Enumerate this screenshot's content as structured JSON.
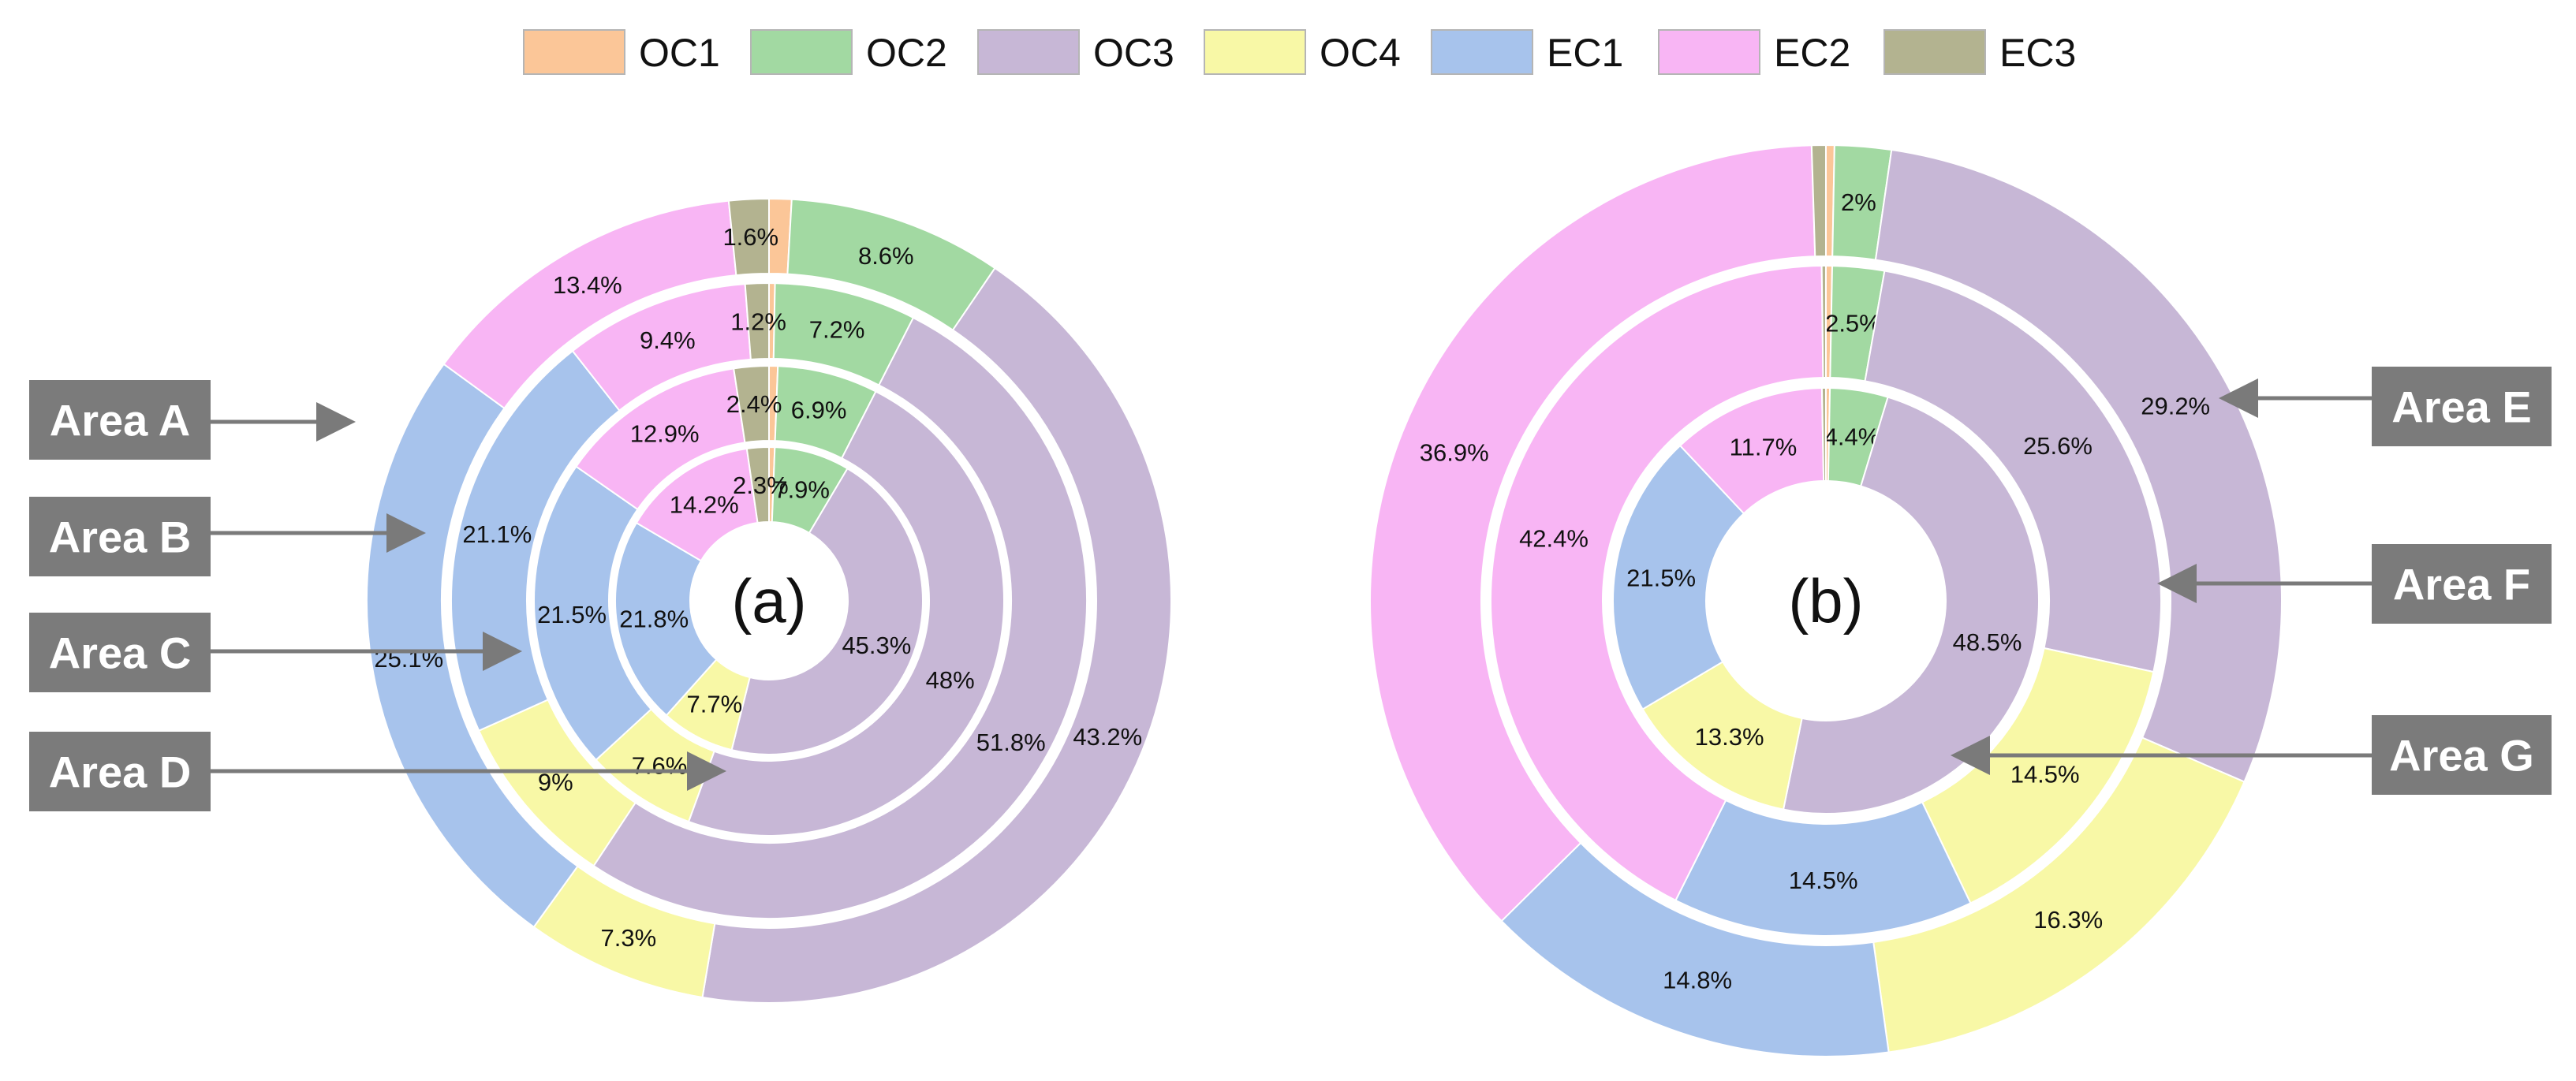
{
  "chart_data": {
    "type": "donut",
    "legend": {
      "position": "top",
      "entries": [
        {
          "name": "OC1",
          "color": "#fbc698"
        },
        {
          "name": "OC2",
          "color": "#a2d9a2"
        },
        {
          "name": "OC3",
          "color": "#c7b7d6"
        },
        {
          "name": "OC4",
          "color": "#f8f8a6"
        },
        {
          "name": "EC1",
          "color": "#a7c3ec"
        },
        {
          "name": "EC2",
          "color": "#f8b5f4"
        },
        {
          "name": "EC3",
          "color": "#b3b390"
        }
      ]
    },
    "panels": [
      {
        "label": "(a)",
        "rings": [
          {
            "area": "Area A",
            "slices": [
              {
                "name": "OC1",
                "value": 0.9,
                "label": ""
              },
              {
                "name": "OC2",
                "value": 8.6,
                "label": "8.6%"
              },
              {
                "name": "OC3",
                "value": 43.2,
                "label": "43.2%"
              },
              {
                "name": "OC4",
                "value": 7.3,
                "label": "7.3%"
              },
              {
                "name": "EC1",
                "value": 25.1,
                "label": "25.1%"
              },
              {
                "name": "EC2",
                "value": 13.4,
                "label": "13.4%"
              },
              {
                "name": "EC3",
                "value": 1.6,
                "label": "1.6%"
              }
            ]
          },
          {
            "area": "Area B",
            "slices": [
              {
                "name": "OC1",
                "value": 0.3,
                "label": ""
              },
              {
                "name": "OC2",
                "value": 7.2,
                "label": "7.2%"
              },
              {
                "name": "OC3",
                "value": 51.8,
                "label": "51.8%"
              },
              {
                "name": "OC4",
                "value": 9,
                "label": "9%"
              },
              {
                "name": "EC1",
                "value": 21.1,
                "label": "21.1%"
              },
              {
                "name": "EC2",
                "value": 9.4,
                "label": "9.4%"
              },
              {
                "name": "EC3",
                "value": 1.2,
                "label": "1.2%"
              }
            ]
          },
          {
            "area": "Area C",
            "slices": [
              {
                "name": "OC1",
                "value": 0.6,
                "label": ""
              },
              {
                "name": "OC2",
                "value": 6.9,
                "label": "6.9%"
              },
              {
                "name": "OC3",
                "value": 48,
                "label": "48%"
              },
              {
                "name": "OC4",
                "value": 7.6,
                "label": "7.6%"
              },
              {
                "name": "EC1",
                "value": 21.5,
                "label": "21.5%"
              },
              {
                "name": "EC2",
                "value": 12.9,
                "label": "12.9%"
              },
              {
                "name": "EC3",
                "value": 2.4,
                "label": "2.4%"
              }
            ]
          },
          {
            "area": "Area D",
            "slices": [
              {
                "name": "OC1",
                "value": 0.6,
                "label": ""
              },
              {
                "name": "OC2",
                "value": 7.9,
                "label": "7.9%"
              },
              {
                "name": "OC3",
                "value": 45.3,
                "label": "45.3%"
              },
              {
                "name": "OC4",
                "value": 7.7,
                "label": "7.7%"
              },
              {
                "name": "EC1",
                "value": 21.8,
                "label": "21.8%"
              },
              {
                "name": "EC2",
                "value": 14.2,
                "label": "14.2%"
              },
              {
                "name": "EC3",
                "value": 2.3,
                "label": "2.3%"
              }
            ]
          }
        ]
      },
      {
        "label": "(b)",
        "rings": [
          {
            "area": "Area E",
            "slices": [
              {
                "name": "OC1",
                "value": 0.3,
                "label": ""
              },
              {
                "name": "OC2",
                "value": 2,
                "label": "2%"
              },
              {
                "name": "OC3",
                "value": 29.2,
                "label": "29.2%"
              },
              {
                "name": "OC4",
                "value": 16.3,
                "label": "16.3%"
              },
              {
                "name": "EC1",
                "value": 14.8,
                "label": "14.8%"
              },
              {
                "name": "EC2",
                "value": 36.9,
                "label": "36.9%"
              },
              {
                "name": "EC3",
                "value": 0.5,
                "label": ""
              }
            ]
          },
          {
            "area": "Area F",
            "slices": [
              {
                "name": "OC1",
                "value": 0.3,
                "label": ""
              },
              {
                "name": "OC2",
                "value": 2.5,
                "label": "2.5%"
              },
              {
                "name": "OC3",
                "value": 25.6,
                "label": "25.6%"
              },
              {
                "name": "OC4",
                "value": 14.5,
                "label": "14.5%"
              },
              {
                "name": "EC1",
                "value": 14.5,
                "label": "14.5%"
              },
              {
                "name": "EC2",
                "value": 42.4,
                "label": "42.4%"
              },
              {
                "name": "EC3",
                "value": 0.2,
                "label": ""
              }
            ]
          },
          {
            "area": "Area G",
            "slices": [
              {
                "name": "OC1",
                "value": 0.3,
                "label": ""
              },
              {
                "name": "OC2",
                "value": 4.4,
                "label": "4.4%"
              },
              {
                "name": "OC3",
                "value": 48.5,
                "label": "48.5%"
              },
              {
                "name": "OC4",
                "value": 13.3,
                "label": "13.3%"
              },
              {
                "name": "EC1",
                "value": 21.5,
                "label": "21.5%"
              },
              {
                "name": "EC2",
                "value": 11.7,
                "label": "11.7%"
              },
              {
                "name": "EC3",
                "value": 0.3,
                "label": ""
              }
            ]
          }
        ]
      }
    ],
    "area_labels": [
      "Area A",
      "Area B",
      "Area C",
      "Area D",
      "Area E",
      "Area F",
      "Area G"
    ]
  }
}
